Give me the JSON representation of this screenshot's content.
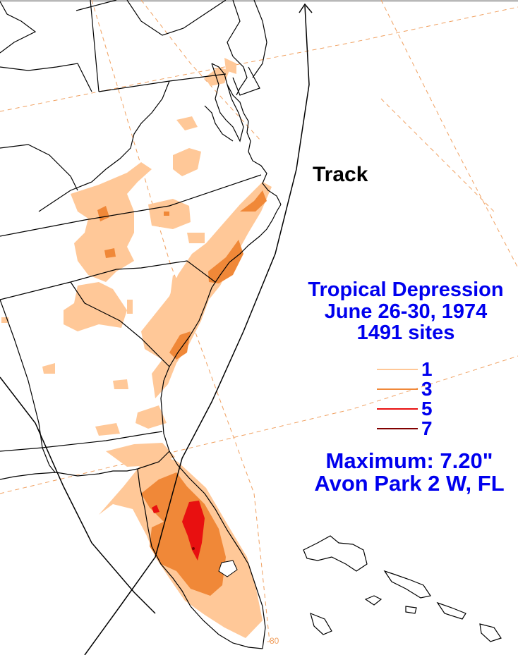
{
  "map": {
    "track_label": "Track",
    "title_lines": [
      "Tropical Depression",
      "June 26-30, 1974",
      "1491 sites"
    ],
    "legend": [
      {
        "label": "1",
        "color": "#ffc898"
      },
      {
        "label": "3",
        "color": "#f08838"
      },
      {
        "label": "5",
        "color": "#e81010"
      },
      {
        "label": "7",
        "color": "#800000"
      }
    ],
    "maximum_line1": "Maximum:  7.20\"",
    "maximum_line2": "Avon Park 2 W, FL",
    "longitude_tick": "-80",
    "colors": {
      "contour_1": "#ffc898",
      "contour_3": "#f08838",
      "contour_5": "#e81010",
      "contour_7": "#800000",
      "text": "#0000ee",
      "boundaries": "#000000",
      "graticule": "#f0a060"
    }
  }
}
